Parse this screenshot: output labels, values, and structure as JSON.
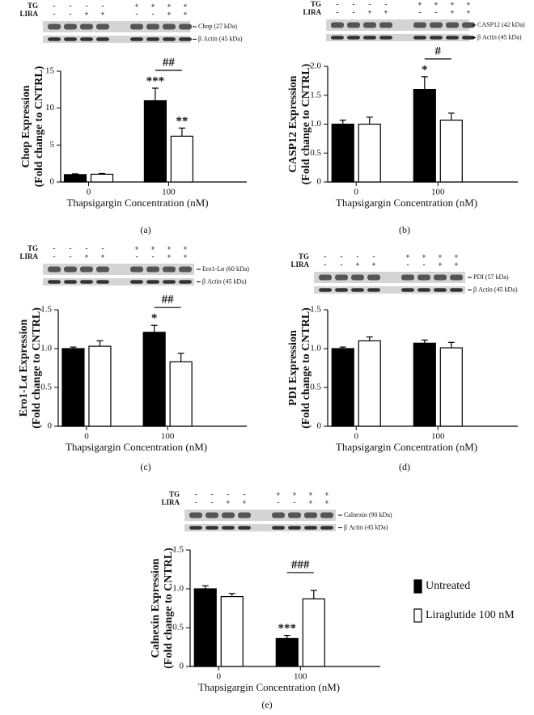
{
  "chart_data": [
    {
      "type": "bar",
      "caption": "(a)",
      "blot": {
        "rows": [
          {
            "label": "TG",
            "signs": [
              "-",
              "-",
              "-",
              "-",
              "+",
              "+",
              "+",
              "+"
            ]
          },
          {
            "label": "LIRA",
            "signs": [
              "-",
              "-",
              "+",
              "+",
              "-",
              "-",
              "+",
              "+"
            ]
          }
        ],
        "bands": [
          "Chop (27 kDa)",
          "β Actin (45 kDa)"
        ]
      },
      "xlabel": "Thapsigargin Concentration (nM)",
      "ylabel": [
        "Chop Expression",
        "(Fold change to CNTRL)"
      ],
      "categories": [
        "0",
        "100"
      ],
      "series": [
        {
          "color": "#000000",
          "values": [
            1.0,
            11.0
          ],
          "errors": [
            0.1,
            1.7
          ],
          "significance": [
            null,
            "***"
          ]
        },
        {
          "color": "#ffffff",
          "values": [
            1.05,
            6.2
          ],
          "errors": [
            0.1,
            1.1
          ],
          "significance": [
            null,
            "**"
          ]
        }
      ],
      "comparison": "##",
      "ylim": [
        0,
        15
      ],
      "yticks": [
        0,
        5,
        10,
        15
      ]
    },
    {
      "type": "bar",
      "caption": "(b)",
      "blot": {
        "rows": [
          {
            "label": "TG",
            "signs": [
              "-",
              "-",
              "-",
              "-",
              "+",
              "+",
              "+",
              "+"
            ]
          },
          {
            "label": "LIRA",
            "signs": [
              "-",
              "-",
              "+",
              "+",
              "-",
              "-",
              "+",
              "+"
            ]
          }
        ],
        "bands": [
          "CASP12 (42 kDa)",
          "β Actin (45 kDa)"
        ]
      },
      "xlabel": "Thapsigargin Concentration (nM)",
      "ylabel": [
        "CASP12 Expression",
        "(Fold change to CNTRL)"
      ],
      "categories": [
        "0",
        "100"
      ],
      "series": [
        {
          "color": "#000000",
          "values": [
            1.0,
            1.6
          ],
          "errors": [
            0.07,
            0.22
          ],
          "significance": [
            null,
            "*"
          ]
        },
        {
          "color": "#ffffff",
          "values": [
            1.0,
            1.07
          ],
          "errors": [
            0.12,
            0.12
          ],
          "significance": [
            null,
            null
          ]
        }
      ],
      "comparison": "#",
      "ylim": [
        0,
        2
      ],
      "yticks": [
        0,
        0.5,
        {
          "value": 1,
          "label": "1.0"
        },
        1.5,
        {
          "value": 2,
          "label": "2.0"
        }
      ]
    },
    {
      "type": "bar",
      "caption": "(c)",
      "blot": {
        "rows": [
          {
            "label": "TG",
            "signs": [
              "-",
              "-",
              "-",
              "-",
              "+",
              "+",
              "+",
              "+"
            ]
          },
          {
            "label": "LIRA",
            "signs": [
              "-",
              "-",
              "+",
              "+",
              "-",
              "-",
              "+",
              "+"
            ]
          }
        ],
        "bands": [
          "Ero1-Lα (60 kDa)",
          "β Actin (45 kDa)"
        ]
      },
      "xlabel": "Thapsigargin Concentration (nM)",
      "ylabel": [
        "Ero1-Lα Expression",
        "(Fold change to CNTRL)"
      ],
      "categories": [
        "0",
        "100"
      ],
      "series": [
        {
          "color": "#000000",
          "values": [
            1.0,
            1.21
          ],
          "errors": [
            0.02,
            0.09
          ],
          "significance": [
            null,
            "*"
          ]
        },
        {
          "color": "#ffffff",
          "values": [
            1.03,
            0.83
          ],
          "errors": [
            0.07,
            0.11
          ],
          "significance": [
            null,
            null
          ]
        }
      ],
      "comparison": "##",
      "ylim": [
        0,
        1.5
      ],
      "yticks": [
        0,
        0.5,
        {
          "value": 1,
          "label": "1.0"
        },
        1.5
      ]
    },
    {
      "type": "bar",
      "caption": "(d)",
      "blot": {
        "rows": [
          {
            "label": "TG",
            "signs": [
              "-",
              "-",
              "-",
              "-",
              "+",
              "+",
              "+",
              "+"
            ]
          },
          {
            "label": "LIRA",
            "signs": [
              "-",
              "-",
              "+",
              "+",
              "-",
              "-",
              "+",
              "+"
            ]
          }
        ],
        "bands": [
          "PDI (57 kDa)",
          "β Actin (45 kDa)"
        ]
      },
      "xlabel": "Thapsigargin Concentration (nM)",
      "ylabel": [
        "PDI Expression",
        "(Fold change to CNTRL)"
      ],
      "categories": [
        "0",
        "100"
      ],
      "series": [
        {
          "color": "#000000",
          "values": [
            1.0,
            1.07
          ],
          "errors": [
            0.02,
            0.04
          ],
          "significance": [
            null,
            null
          ]
        },
        {
          "color": "#ffffff",
          "values": [
            1.1,
            1.01
          ],
          "errors": [
            0.05,
            0.07
          ],
          "significance": [
            null,
            null
          ]
        }
      ],
      "ylim": [
        0,
        1.5
      ],
      "yticks": [
        0,
        0.5,
        {
          "value": 1,
          "label": "1.0"
        },
        1.5
      ]
    },
    {
      "type": "bar",
      "caption": "(e)",
      "blot": {
        "rows": [
          {
            "label": "TG",
            "signs": [
              "-",
              "-",
              "-",
              "-",
              "+",
              "+",
              "+",
              "+"
            ]
          },
          {
            "label": "LIRA",
            "signs": [
              "-",
              "-",
              "+",
              "+",
              "-",
              "-",
              "+",
              "+"
            ]
          }
        ],
        "bands": [
          "Calnexin (90 kDa)",
          "β Actin (45 kDa)"
        ]
      },
      "xlabel": "Thapsigargin Concentration (nM)",
      "ylabel": [
        "Calnexin Expression",
        "(Fold change to CNTRL)"
      ],
      "categories": [
        "0",
        "100"
      ],
      "series": [
        {
          "name": "Untreated",
          "color": "#000000",
          "values": [
            1.0,
            0.36
          ],
          "errors": [
            0.04,
            0.04
          ],
          "significance": [
            null,
            "***"
          ]
        },
        {
          "name": "Liraglutide 100 nM",
          "color": "#ffffff",
          "values": [
            0.9,
            0.87
          ],
          "errors": [
            0.04,
            0.11
          ],
          "significance": [
            null,
            null
          ]
        }
      ],
      "comparison": "###",
      "ylim": [
        0,
        1.5
      ],
      "yticks": [
        0,
        0.5,
        {
          "value": 1,
          "label": "1.0"
        },
        1.5
      ]
    }
  ]
}
